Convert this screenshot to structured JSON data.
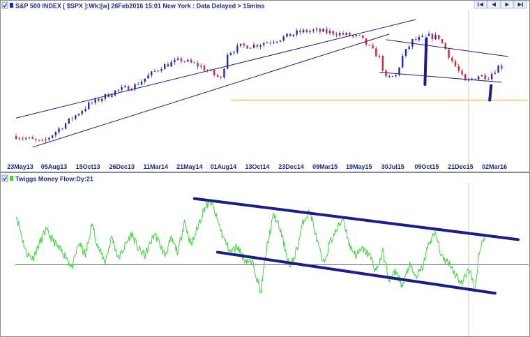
{
  "top_panel": {
    "title": "S&P 500 INDEX [ $SPX ]:Wk:[w]  26Feb2016 15:01 New York : Data Delayed > 15mins",
    "nav_buttons": [
      "first-icon",
      "back-icon",
      "forward-icon",
      "last-icon"
    ]
  },
  "bottom_panel": {
    "title": "Twiggs Money Flow:Dy:21"
  },
  "colors": {
    "panel_border": "#8a8a8a",
    "up_bar": "#1a2db8",
    "down_bar": "#e0203a",
    "trend_line": "#1c1c8a",
    "support_line": "#e2bf6a",
    "cursor_line": "#c9d4a8",
    "money_flow": "#3ed83e",
    "zero_line": "#555555",
    "header_text": "#1c2a8c"
  },
  "chart_data": [
    {
      "type": "candlestick",
      "title": "S&P 500 INDEX [ $SPX ]:Wk:[w]  26Feb2016 15:01 New York : Data Delayed > 15mins",
      "x_tick_labels": [
        "23May13",
        "05Aug13",
        "15Oct13",
        "26Dec13",
        "11Mar14",
        "21May14",
        "01Aug14",
        "13Oct14",
        "23Dec14",
        "09Mar15",
        "19May15",
        "30Jul15",
        "09Oct15",
        "21Dec15",
        "02Mar16"
      ],
      "x_range_weeks": [
        0,
        152
      ],
      "y_range": [
        1550,
        2220
      ],
      "price_anchor_weeks": [
        0,
        8,
        12,
        22,
        30,
        36,
        44,
        50,
        56,
        62,
        64,
        68,
        72,
        80,
        86,
        90,
        97,
        104,
        110,
        112,
        115,
        117,
        120,
        125,
        128,
        132,
        136,
        140,
        143,
        146
      ],
      "price_anchor_values": [
        1650,
        1620,
        1670,
        1790,
        1850,
        1875,
        1960,
        1990,
        1960,
        1905,
        2020,
        2050,
        2055,
        2085,
        2115,
        2120,
        2110,
        2090,
        2000,
        1905,
        1920,
        2005,
        2075,
        2095,
        2090,
        1985,
        1890,
        1920,
        1915,
        1960
      ],
      "drop_bars": [
        {
          "week": 124,
          "high": 2085,
          "low": 1880
        },
        {
          "week": 143.6,
          "high": 1875,
          "low": 1810
        }
      ],
      "trend_lines": [
        {
          "name": "upper channel",
          "from": [
            0,
            1730
          ],
          "to": [
            121,
            2170
          ]
        },
        {
          "name": "lower channel",
          "from": [
            5,
            1600
          ],
          "to": [
            113,
            2105
          ]
        },
        {
          "name": "recent upper",
          "from": [
            112,
            2080
          ],
          "to": [
            149,
            2005
          ]
        },
        {
          "name": "recent lower",
          "from": [
            110,
            1935
          ],
          "to": [
            147,
            1890
          ]
        }
      ],
      "support_level": 1810,
      "cursor_week": 137
    },
    {
      "type": "line",
      "title": "Twiggs Money Flow:Dy:21",
      "x_range_weeks": [
        0,
        152
      ],
      "y_range": [
        -0.22,
        0.26
      ],
      "zero_line": 0,
      "anchor_weeks": [
        0,
        1,
        3,
        5,
        9,
        13,
        15,
        17,
        19,
        21,
        23,
        25,
        27,
        29,
        31,
        33,
        35,
        37,
        39,
        42,
        45,
        47,
        49,
        51,
        53,
        55,
        57,
        59,
        61,
        63,
        65,
        67,
        69,
        72,
        74,
        76,
        78,
        80,
        83,
        85,
        87,
        89,
        91,
        93,
        95,
        97,
        99,
        101,
        103,
        105,
        107,
        109,
        111,
        113,
        115,
        117,
        119,
        121,
        123,
        125,
        127,
        129,
        131,
        133,
        135,
        137,
        139,
        140,
        142
      ],
      "anchor_values": [
        0.16,
        0.12,
        0.04,
        0.02,
        0.11,
        0.05,
        0.03,
        -0.01,
        0.07,
        0.03,
        0.13,
        0.05,
        0.01,
        0.09,
        0.02,
        0.06,
        0.1,
        0.05,
        0.03,
        0.1,
        0.03,
        0.08,
        0.04,
        0.14,
        0.06,
        0.12,
        0.18,
        0.2,
        0.14,
        0.08,
        0.04,
        0.06,
        0.02,
        0.0,
        -0.09,
        0.06,
        0.16,
        0.11,
        -0.01,
        0.05,
        0.14,
        0.17,
        0.08,
        0.0,
        0.07,
        0.11,
        0.15,
        0.06,
        0.03,
        0.05,
        0.03,
        -0.02,
        0.04,
        -0.05,
        -0.02,
        -0.07,
        0.0,
        -0.04,
        -0.01,
        0.07,
        0.1,
        0.02,
        0.01,
        -0.03,
        -0.06,
        -0.01,
        -0.08,
        0.03,
        0.1
      ],
      "trend_lines": [
        {
          "name": "upper channel",
          "from": [
            54,
            0.21
          ],
          "to": [
            152,
            0.08
          ]
        },
        {
          "name": "lower channel",
          "from": [
            61,
            0.04
          ],
          "to": [
            145,
            -0.09
          ]
        }
      ],
      "cursor_week": 137
    }
  ]
}
